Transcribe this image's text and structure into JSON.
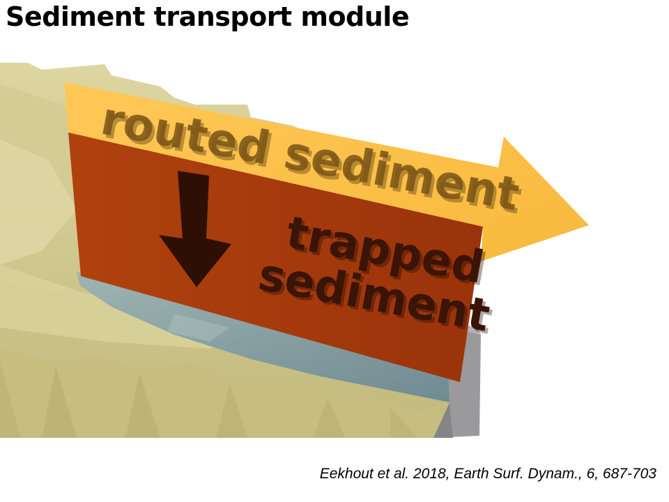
{
  "slide": {
    "title": "Sediment transport module",
    "citation": "Eekhout et al. 2018, Earth Surf. Dynam., 6, 687-703"
  },
  "diagram": {
    "routed_label": "routed sediment",
    "trapped_label_line1": "trapped",
    "trapped_label_line2": "sediment",
    "colors": {
      "terrain": "#c9c08a",
      "terrain_shadow": "#a9a06a",
      "water": "#7f9aa0",
      "dam_wall": "#9a9a9c",
      "routed_arrow": "#fcc24a",
      "trapped_panel": "#a2380c",
      "text_shadow": "#5a3a10",
      "down_arrow": "#2e0f04"
    },
    "icons": [
      "down-arrow-icon",
      "right-arrow-icon"
    ]
  }
}
